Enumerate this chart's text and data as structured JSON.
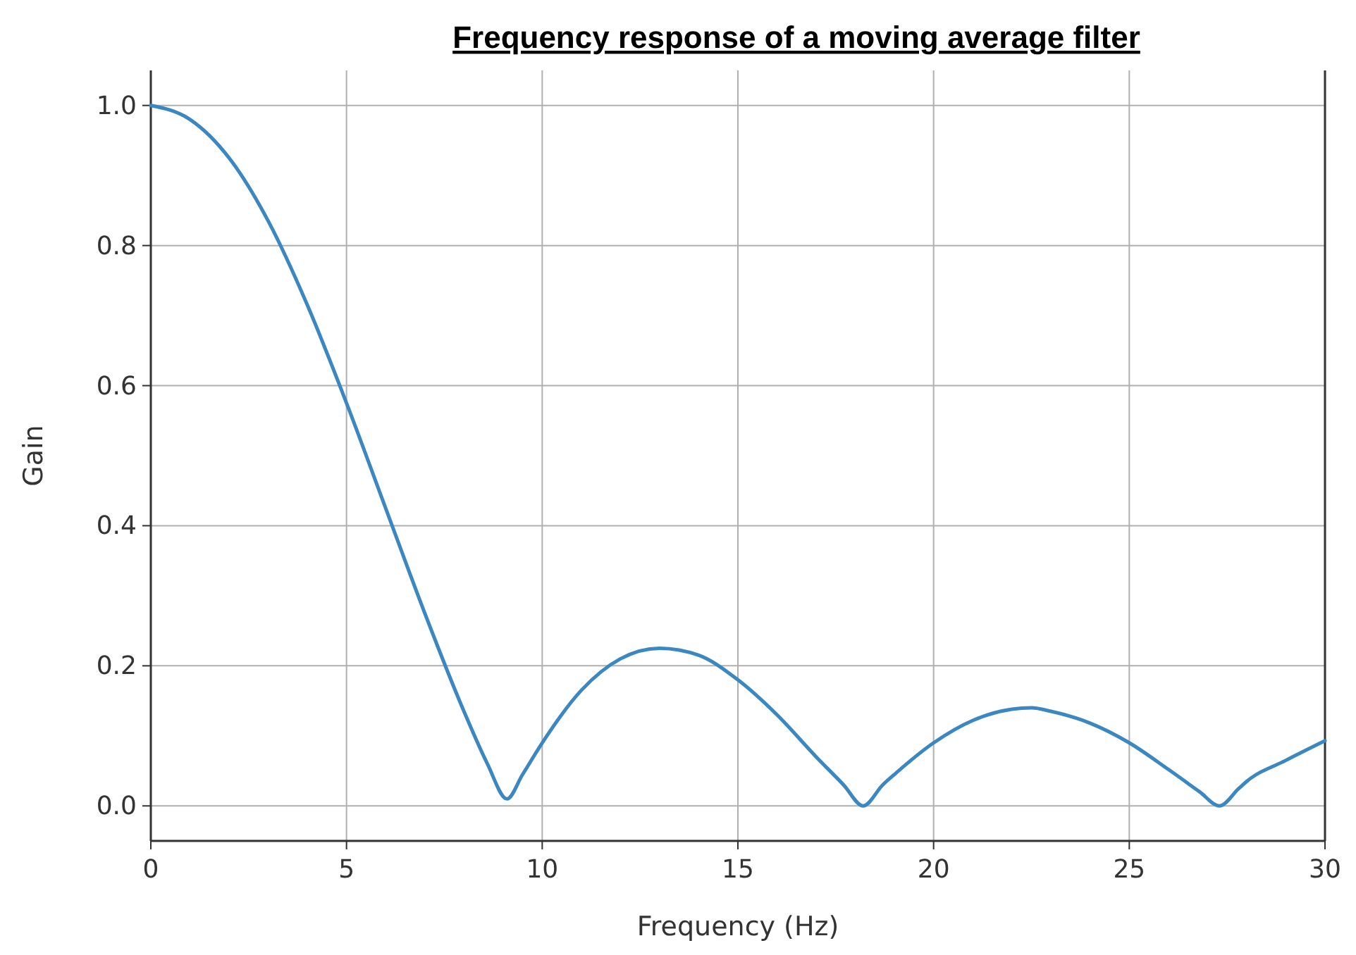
{
  "chart_data": {
    "type": "line",
    "title": "Frequency response of a moving average filter",
    "xlabel": "Frequency (Hz)",
    "ylabel": "Gain",
    "xlim": [
      0,
      30
    ],
    "ylim": [
      -0.05,
      1.05
    ],
    "xticks": [
      0,
      5,
      10,
      15,
      20,
      25,
      30
    ],
    "yticks": [
      {
        "value": 0,
        "label": "0.0"
      },
      0.2,
      0.4,
      0.6,
      0.8,
      {
        "value": 1,
        "label": "1.0"
      }
    ],
    "grid": true,
    "series": [
      {
        "color": "#3b87c2",
        "x": [
          0,
          1,
          2,
          3,
          4,
          5,
          6,
          7,
          8,
          8.6,
          9.1,
          9.5,
          10,
          11,
          12,
          13,
          14,
          15,
          16,
          17,
          17.7,
          18.2,
          18.7,
          19,
          20,
          21,
          22,
          22.5,
          23,
          24,
          25,
          26,
          26.8,
          27.3,
          27.8,
          28,
          29,
          30
        ],
        "values": [
          1.0,
          0.98,
          0.925,
          0.835,
          0.715,
          0.575,
          0.425,
          0.275,
          0.135,
          0.06,
          0.01,
          0.045,
          0.09,
          0.165,
          0.21,
          0.225,
          0.215,
          0.18,
          0.13,
          0.07,
          0.03,
          0.0,
          0.03,
          0.045,
          0.09,
          0.122,
          0.138,
          0.14,
          0.135,
          0.118,
          0.09,
          0.052,
          0.02,
          0.0,
          0.025,
          0.035,
          0.065,
          0.093
        ]
      }
    ]
  }
}
